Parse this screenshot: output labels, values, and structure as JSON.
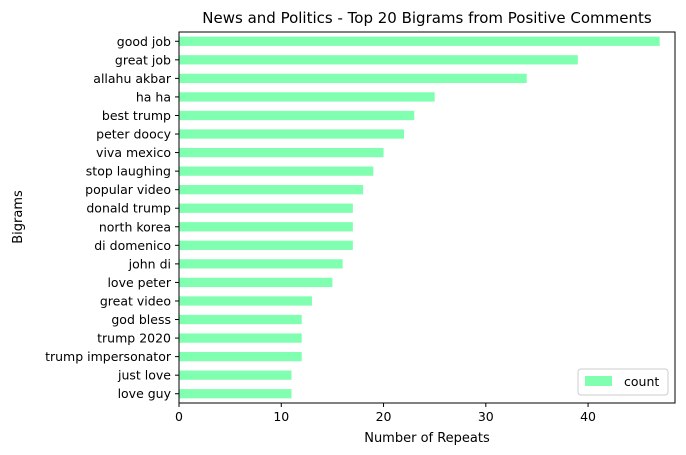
{
  "chart_data": {
    "type": "bar",
    "orientation": "horizontal",
    "title": "News and Politics - Top 20 Bigrams from Positive Comments",
    "xlabel": "Number of Repeats",
    "ylabel": "Bigrams",
    "xlim": [
      0,
      48.5
    ],
    "xticks": [
      0,
      10,
      20,
      30,
      40
    ],
    "grid": false,
    "legend": {
      "position": "bottom-right",
      "entries": [
        "count"
      ]
    },
    "bar_color": "#7fffaf",
    "categories": [
      "good job",
      "great job",
      "allahu akbar",
      "ha ha",
      "best trump",
      "peter doocy",
      "viva mexico",
      "stop laughing",
      "popular video",
      "donald trump",
      "north korea",
      "di domenico",
      "john di",
      "love peter",
      "great video",
      "god bless",
      "trump 2020",
      "trump impersonator",
      "just love",
      "love guy"
    ],
    "series": [
      {
        "name": "count",
        "values": [
          47,
          39,
          34,
          25,
          23,
          22,
          20,
          19,
          18,
          17,
          17,
          17,
          16,
          15,
          13,
          12,
          12,
          12,
          11,
          11
        ]
      }
    ]
  }
}
